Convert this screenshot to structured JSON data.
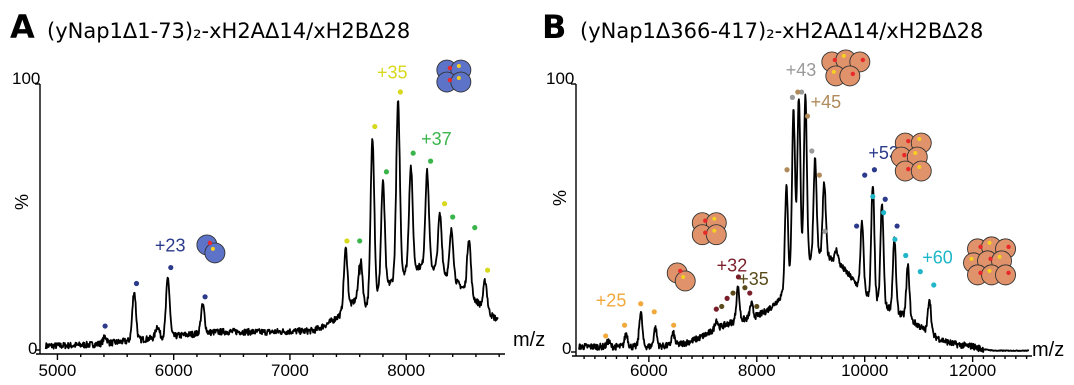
{
  "colors": {
    "navy": "#2b3a8a",
    "yellow": "#d8d81c",
    "green": "#3ab54a",
    "orange": "#f2a93b",
    "maroon": "#7a1f2a",
    "olive": "#5a4a1a",
    "gray": "#9a9a9a",
    "tan": "#b08a5a",
    "cyan": "#1eb6c8",
    "histone_blue": "#5c73c8",
    "histone_orange": "#e0926a"
  },
  "chart_data": [
    {
      "type": "line",
      "panel": "A",
      "title": "(yNap1Δ1-73)₂-xH2AΔ14/xH2BΔ28",
      "xlabel": "m/z",
      "ylabel": "%",
      "xlim": [
        4850,
        8850
      ],
      "ylim": [
        0,
        100
      ],
      "x_ticks": [
        5000,
        6000,
        7000,
        8000
      ],
      "y_ticks": [
        0,
        100
      ],
      "peaks": [
        {
          "x": 5410,
          "y": 5
        },
        {
          "x": 5660,
          "y": 22
        },
        {
          "x": 5860,
          "y": 9
        },
        {
          "x": 5950,
          "y": 27
        },
        {
          "x": 6250,
          "y": 17
        },
        {
          "x": 7480,
          "y": 38
        },
        {
          "x": 7610,
          "y": 33
        },
        {
          "x": 7710,
          "y": 80
        },
        {
          "x": 7800,
          "y": 63
        },
        {
          "x": 7930,
          "y": 93
        },
        {
          "x": 8040,
          "y": 69
        },
        {
          "x": 8180,
          "y": 67
        },
        {
          "x": 8290,
          "y": 51
        },
        {
          "x": 8390,
          "y": 45
        },
        {
          "x": 8540,
          "y": 42
        },
        {
          "x": 8680,
          "y": 26
        }
      ],
      "markers": [
        {
          "x": 5410,
          "y": 9,
          "color": "navy"
        },
        {
          "x": 5680,
          "y": 25,
          "color": "navy"
        },
        {
          "x": 5975,
          "y": 31,
          "color": "navy"
        },
        {
          "x": 6270,
          "y": 20,
          "color": "navy"
        },
        {
          "x": 7490,
          "y": 41,
          "color": "yellow"
        },
        {
          "x": 7730,
          "y": 84,
          "color": "yellow"
        },
        {
          "x": 7950,
          "y": 97,
          "color": "yellow"
        },
        {
          "x": 8330,
          "y": 55,
          "color": "yellow"
        },
        {
          "x": 8700,
          "y": 30,
          "color": "yellow"
        },
        {
          "x": 7600,
          "y": 41,
          "color": "green"
        },
        {
          "x": 7830,
          "y": 67,
          "color": "green"
        },
        {
          "x": 8060,
          "y": 74,
          "color": "green"
        },
        {
          "x": 8210,
          "y": 71,
          "color": "green"
        },
        {
          "x": 8400,
          "y": 50,
          "color": "green"
        },
        {
          "x": 8590,
          "y": 46,
          "color": "green"
        }
      ],
      "annotations": [
        {
          "text": "+23",
          "x": 5970,
          "y": 37,
          "color": "navy"
        },
        {
          "text": "+35",
          "x": 7880,
          "y": 102,
          "color": "yellow"
        },
        {
          "text": "+37",
          "x": 8260,
          "y": 77,
          "color": "green"
        }
      ],
      "icons": [
        {
          "name": "histone-dimer-icon",
          "x": 6320,
          "y": 38,
          "kind": "dimer",
          "color": "histone_blue"
        },
        {
          "name": "histone-tetramer-icon",
          "x": 8410,
          "y": 103,
          "kind": "tetramer",
          "color": "histone_blue"
        }
      ]
    },
    {
      "type": "line",
      "panel": "B",
      "title": "(yNap1Δ366-417)₂-xH2AΔ14/xH2BΔ28",
      "xlabel": "m/z",
      "ylabel": "%",
      "xlim": [
        4650,
        13100
      ],
      "ylim": [
        0,
        100
      ],
      "x_ticks": [
        6000,
        8000,
        10000,
        12000
      ],
      "y_ticks": [
        0,
        100
      ],
      "peaks": [
        {
          "x": 5250,
          "y": 4
        },
        {
          "x": 5580,
          "y": 7
        },
        {
          "x": 5850,
          "y": 15
        },
        {
          "x": 6120,
          "y": 9
        },
        {
          "x": 6450,
          "y": 7
        },
        {
          "x": 7250,
          "y": 12
        },
        {
          "x": 7650,
          "y": 24
        },
        {
          "x": 7900,
          "y": 18
        },
        {
          "x": 8550,
          "y": 62
        },
        {
          "x": 8680,
          "y": 90
        },
        {
          "x": 8780,
          "y": 95
        },
        {
          "x": 8900,
          "y": 95
        },
        {
          "x": 9080,
          "y": 72
        },
        {
          "x": 9250,
          "y": 63
        },
        {
          "x": 9480,
          "y": 38
        },
        {
          "x": 9950,
          "y": 48
        },
        {
          "x": 10150,
          "y": 62
        },
        {
          "x": 10320,
          "y": 55
        },
        {
          "x": 10550,
          "y": 42
        },
        {
          "x": 10800,
          "y": 32
        },
        {
          "x": 11200,
          "y": 20
        }
      ],
      "markers": [
        {
          "x": 5200,
          "y": 6,
          "color": "orange"
        },
        {
          "x": 5550,
          "y": 10,
          "color": "orange"
        },
        {
          "x": 5850,
          "y": 18,
          "color": "orange"
        },
        {
          "x": 6100,
          "y": 15,
          "color": "orange"
        },
        {
          "x": 6460,
          "y": 10,
          "color": "orange"
        },
        {
          "x": 7250,
          "y": 16,
          "color": "maroon"
        },
        {
          "x": 7450,
          "y": 20,
          "color": "maroon"
        },
        {
          "x": 7660,
          "y": 28,
          "color": "maroon"
        },
        {
          "x": 7870,
          "y": 22,
          "color": "maroon"
        },
        {
          "x": 7350,
          "y": 17,
          "color": "olive"
        },
        {
          "x": 7560,
          "y": 22,
          "color": "olive"
        },
        {
          "x": 7780,
          "y": 24,
          "color": "olive"
        },
        {
          "x": 8000,
          "y": 17,
          "color": "olive"
        },
        {
          "x": 8660,
          "y": 95,
          "color": "gray"
        },
        {
          "x": 8830,
          "y": 97,
          "color": "gray"
        },
        {
          "x": 9020,
          "y": 75,
          "color": "gray"
        },
        {
          "x": 9260,
          "y": 45,
          "color": "gray"
        },
        {
          "x": 8560,
          "y": 68,
          "color": "tan"
        },
        {
          "x": 8760,
          "y": 97,
          "color": "tan"
        },
        {
          "x": 8940,
          "y": 88,
          "color": "tan"
        },
        {
          "x": 9160,
          "y": 66,
          "color": "tan"
        },
        {
          "x": 9850,
          "y": 47,
          "color": "navy"
        },
        {
          "x": 10000,
          "y": 66,
          "color": "navy"
        },
        {
          "x": 10180,
          "y": 68,
          "color": "navy"
        },
        {
          "x": 10380,
          "y": 57,
          "color": "navy"
        },
        {
          "x": 10600,
          "y": 47,
          "color": "navy"
        },
        {
          "x": 10150,
          "y": 58,
          "color": "cyan"
        },
        {
          "x": 10350,
          "y": 52,
          "color": "cyan"
        },
        {
          "x": 10560,
          "y": 42,
          "color": "cyan"
        },
        {
          "x": 10760,
          "y": 36,
          "color": "cyan"
        },
        {
          "x": 11030,
          "y": 30,
          "color": "cyan"
        },
        {
          "x": 11280,
          "y": 25,
          "color": "cyan"
        }
      ],
      "annotations": [
        {
          "text": "+25",
          "x": 5300,
          "y": 17,
          "color": "orange"
        },
        {
          "text": "+32",
          "x": 7540,
          "y": 30,
          "color": "maroon"
        },
        {
          "text": "+35",
          "x": 7940,
          "y": 25,
          "color": "olive"
        },
        {
          "text": "+43",
          "x": 8820,
          "y": 103,
          "color": "gray"
        },
        {
          "text": "+45",
          "x": 9280,
          "y": 91,
          "color": "tan"
        },
        {
          "text": "+53",
          "x": 10350,
          "y": 72,
          "color": "navy"
        },
        {
          "text": "+60",
          "x": 11350,
          "y": 33,
          "color": "cyan"
        }
      ],
      "icons": [
        {
          "name": "histone-dimer-icon",
          "x": 6600,
          "y": 28,
          "kind": "dimer",
          "color": "histone_orange"
        },
        {
          "name": "histone-tetramer-icon",
          "x": 7120,
          "y": 46,
          "kind": "tetramer",
          "color": "histone_orange"
        },
        {
          "name": "histone-hexamer-icon",
          "x": 9650,
          "y": 106,
          "kind": "hexamer",
          "color": "histone_orange"
        },
        {
          "name": "histone-octamer-icon",
          "x": 10900,
          "y": 72,
          "kind": "octamer",
          "color": "histone_orange"
        },
        {
          "name": "histone-dodecamer-icon",
          "x": 12350,
          "y": 34,
          "kind": "dodecamer",
          "color": "histone_orange"
        }
      ]
    }
  ]
}
